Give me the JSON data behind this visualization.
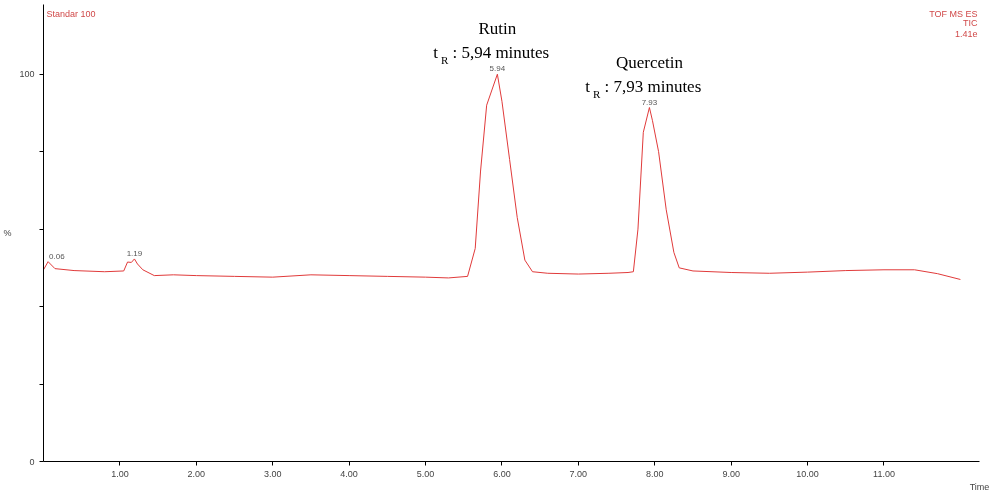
{
  "chart_data": {
    "type": "line",
    "title": "Standar 100",
    "xlabel": "Time",
    "ylabel": "%",
    "x": [
      0,
      0.06,
      0.15,
      0.4,
      0.8,
      1.05,
      1.1,
      1.15,
      1.19,
      1.23,
      1.3,
      1.45,
      1.7,
      2.0,
      2.5,
      3.0,
      3.5,
      4.0,
      4.5,
      5.0,
      5.3,
      5.55,
      5.65,
      5.72,
      5.8,
      5.94,
      6.0,
      6.1,
      6.2,
      6.3,
      6.4,
      6.6,
      7.0,
      7.4,
      7.65,
      7.72,
      7.78,
      7.85,
      7.93,
      7.97,
      8.05,
      8.15,
      8.25,
      8.32,
      8.5,
      9.0,
      9.5,
      10.0,
      10.5,
      11.0,
      11.4,
      11.7,
      12.0
    ],
    "series": [
      {
        "color": "#e03a3a",
        "values": [
          49.5,
          51.6,
          49.8,
          49.3,
          49.0,
          49.2,
          51.5,
          51.4,
          52.3,
          51.0,
          49.5,
          48.0,
          48.2,
          48.0,
          47.8,
          47.6,
          48.2,
          48.0,
          47.8,
          47.6,
          47.4,
          47.8,
          55,
          75,
          92,
          100,
          93,
          78,
          63,
          52,
          49,
          48.6,
          48.4,
          48.6,
          48.8,
          49,
          60,
          85,
          91.4,
          88,
          80,
          65,
          54,
          50,
          49.2,
          48.8,
          48.6,
          48.9,
          49.3,
          49.5,
          49.5,
          48.5,
          47.0
        ]
      }
    ],
    "xlim": [
      0,
      12.25
    ],
    "ylim": [
      0,
      118
    ],
    "xticks": [
      {
        "value": 1,
        "label": "1.00"
      },
      {
        "value": 2,
        "label": "2.00"
      },
      {
        "value": 3,
        "label": "3.00"
      },
      {
        "value": 4,
        "label": "4.00"
      },
      {
        "value": 5,
        "label": "5.00"
      },
      {
        "value": 6,
        "label": "6.00"
      },
      {
        "value": 7,
        "label": "7.00"
      },
      {
        "value": 8,
        "label": "8.00"
      },
      {
        "value": 9,
        "label": "9.00"
      },
      {
        "value": 10,
        "label": "10.00"
      },
      {
        "value": 11,
        "label": "11.00"
      }
    ],
    "yticks": [
      0,
      {
        "value": 20,
        "label": null
      },
      {
        "value": 40,
        "label": null
      },
      {
        "value": 60,
        "label": null
      },
      {
        "value": 80,
        "label": null
      },
      100
    ],
    "grid": false,
    "marker": "none",
    "line_style": "solid",
    "annotations": [
      {
        "text": "0.06",
        "x": 0.06,
        "y": 51.6
      },
      {
        "text": "1.19",
        "x": 1.19,
        "y": 52.3
      },
      {
        "text": "5.94",
        "x": 5.94,
        "y": 100
      },
      {
        "text": "t$_{R}$ : 5,94 minutes",
        "x": 5.94,
        "y": 100
      },
      {
        "text": "Rutin",
        "x": 5.94,
        "y": 100
      },
      {
        "text": "7.93",
        "x": 7.93,
        "y": 91.4
      },
      {
        "text": "t$_{R}$ : 7,93 minutes",
        "x": 7.93,
        "y": 91.4
      },
      {
        "text": "Quercetin",
        "x": 7.93,
        "y": 91.4
      },
      "TOF MS ES",
      "TIC",
      "1.41e"
    ]
  }
}
